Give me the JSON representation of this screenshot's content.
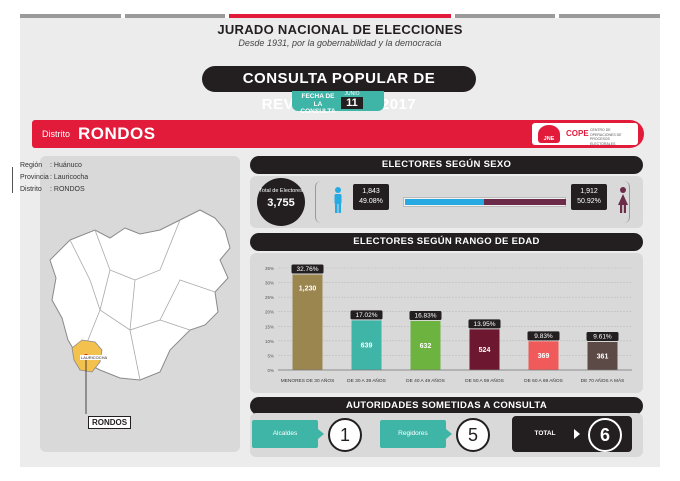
{
  "header": {
    "title": "JURADO NACIONAL DE ELECCIONES",
    "subtitle": "Desde 1931, por la gobernabilidad y la democracia"
  },
  "consulta": {
    "title": "CONSULTA POPULAR DE REVOCATORIA 2017",
    "fecha_label": "FECHA DE LA CONSULTA",
    "mes": "JUNIO",
    "dia": "11"
  },
  "distrito": {
    "label": "Distrito",
    "name": "RONDOS",
    "logo_text": "COPE",
    "logo_sub": "JNE",
    "logo_small": "CENTRO DE OPERACIONES DE PROCESOS ELECTORALES"
  },
  "ubicacion": {
    "region_k": "Región",
    "region_v": ": Huánuco",
    "provincia_k": "Provincia",
    "provincia_v": ": Lauricocha",
    "distrito_k": "Distrito",
    "distrito_v": ": RONDOS",
    "map_label": "RONDOS",
    "map_small": "LAURICOCHA"
  },
  "sexo": {
    "heading": "ELECTORES SEGÚN SEXO",
    "total_label": "Total de Electores",
    "total": "3,755",
    "hombres": "1,843",
    "hombres_pct": "49.08%",
    "mujeres": "1,912",
    "mujeres_pct": "50.92%",
    "hombres_share": 0.4908,
    "color_hombres": "#27aae1",
    "color_mujeres": "#6d2b4a"
  },
  "edad": {
    "heading": "ELECTORES SEGÚN RANGO DE EDAD"
  },
  "chart_data": {
    "type": "bar",
    "categories": [
      "MENORES DE 30 AÑOS",
      "DE 30 A 39 AÑOS",
      "DE 40 A 49 AÑOS",
      "DE 50 A 59 AÑOS",
      "DE 60 A 69 AÑOS",
      "DE 70 AÑOS A MÁS"
    ],
    "values": [
      1230,
      639,
      632,
      524,
      369,
      361
    ],
    "value_labels": [
      "1,230",
      "639",
      "632",
      "524",
      "369",
      "361"
    ],
    "percent_values": [
      32.76,
      17.02,
      16.83,
      13.95,
      9.83,
      9.61
    ],
    "percent_labels": [
      "32.76%",
      "17.02%",
      "16.83%",
      "13.95%",
      "9.83%",
      "9.61%"
    ],
    "y_ticks": [
      "35%",
      "30%",
      "25%",
      "20%",
      "15%",
      "10%",
      "5%",
      "0%"
    ],
    "ylim": [
      0,
      35
    ],
    "colors": [
      "#9c8650",
      "#3fb5a8",
      "#6cb33f",
      "#6d1830",
      "#f15a5a",
      "#5b4a45"
    ],
    "grid": true
  },
  "autoridades": {
    "heading": "AUTORIDADES SOMETIDAS A CONSULTA",
    "alcaldes_label": "Alcaldes",
    "alcaldes": "1",
    "regidores_label": "Regidores",
    "regidores": "5",
    "total_label": "TOTAL",
    "total": "6"
  }
}
